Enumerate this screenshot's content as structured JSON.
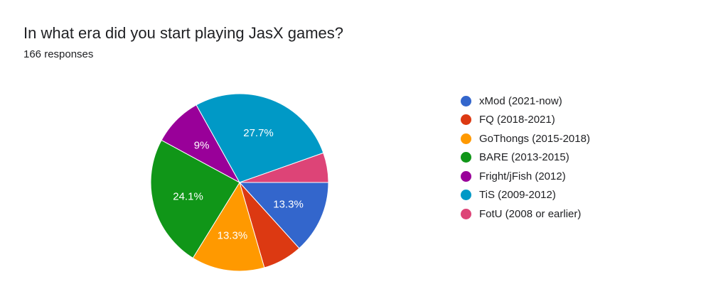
{
  "header": {
    "title": "In what era did you start playing JasX games?",
    "subtitle": "166 responses"
  },
  "chart_data": {
    "type": "pie",
    "title": "In what era did you start playing JasX games?",
    "subtitle": "166 responses",
    "legend_position": "right",
    "slices": [
      {
        "label": "xMod (2021-now)",
        "value": 13.3,
        "display": "13.3%",
        "color": "#3366cc"
      },
      {
        "label": "FQ (2018-2021)",
        "value": 7.2,
        "display": "",
        "color": "#dc3912"
      },
      {
        "label": "GoThongs (2015-2018)",
        "value": 13.3,
        "display": "13.3%",
        "color": "#ff9900"
      },
      {
        "label": "BARE (2013-2015)",
        "value": 24.1,
        "display": "24.1%",
        "color": "#109618"
      },
      {
        "label": "Fright/jFish (2012)",
        "value": 9.0,
        "display": "9%",
        "color": "#990099"
      },
      {
        "label": "TiS (2009-2012)",
        "value": 27.7,
        "display": "27.7%",
        "color": "#0099c6"
      },
      {
        "label": "FotU (2008 or earlier)",
        "value": 5.4,
        "display": "",
        "color": "#dd4477"
      }
    ]
  }
}
